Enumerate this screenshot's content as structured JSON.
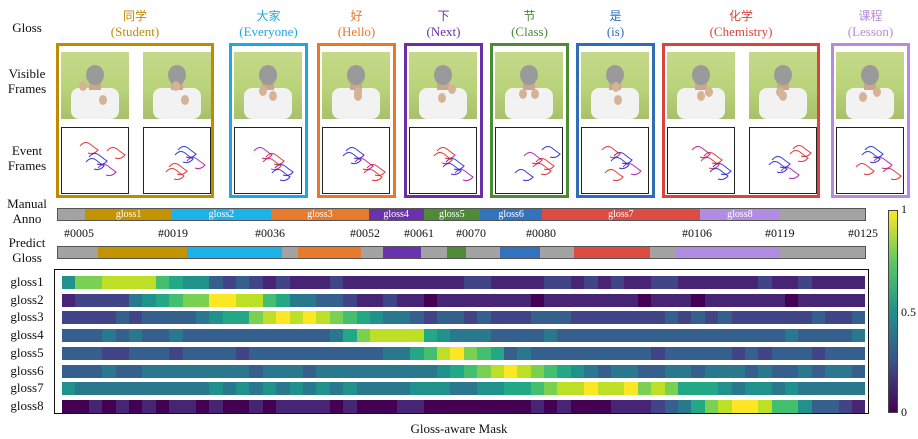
{
  "row_labels": {
    "gloss": "Gloss",
    "visible": "Visible\nFrames",
    "event": "Event\nFrames",
    "manual": "Manual\nAnno",
    "predict": "Predict\nGloss"
  },
  "glosses": [
    {
      "zh": "同学",
      "en": "(Student)",
      "color": "#bf8b00",
      "frames": 2
    },
    {
      "zh": "大家",
      "en": "(Everyone)",
      "color": "#1fa8e0",
      "frames": 1
    },
    {
      "zh": "好",
      "en": "(Hello)",
      "color": "#e8772a",
      "frames": 1
    },
    {
      "zh": "下",
      "en": "(Next)",
      "color": "#6a2fa8",
      "frames": 1
    },
    {
      "zh": "节",
      "en": "(Class)",
      "color": "#4d8a35",
      "frames": 1
    },
    {
      "zh": "是",
      "en": "(is)",
      "color": "#2f6db5",
      "frames": 1
    },
    {
      "zh": "化学",
      "en": "(Chemistry)",
      "color": "#d9443d",
      "frames": 2
    },
    {
      "zh": "课程",
      "en": "(Lesson)",
      "color": "#b58ae0",
      "frames": 1
    }
  ],
  "manual_anno": [
    {
      "label": "",
      "color": "#a3a3a3",
      "span": [
        0.0,
        0.034
      ]
    },
    {
      "label": "gloss1",
      "color": "#c49300",
      "span": [
        0.034,
        0.141
      ]
    },
    {
      "label": "gloss2",
      "color": "#1cb3ea",
      "span": [
        0.141,
        0.264
      ]
    },
    {
      "label": "gloss3",
      "color": "#e87a2d",
      "span": [
        0.264,
        0.385
      ]
    },
    {
      "label": "gloss4",
      "color": "#6a33ad",
      "span": [
        0.385,
        0.453
      ]
    },
    {
      "label": "gloss5",
      "color": "#4f8a36",
      "span": [
        0.453,
        0.523
      ]
    },
    {
      "label": "gloss6",
      "color": "#3273bf",
      "span": [
        0.523,
        0.6
      ]
    },
    {
      "label": "gloss7",
      "color": "#de4b42",
      "span": [
        0.6,
        0.795
      ]
    },
    {
      "label": "gloss8",
      "color": "#b08ce2",
      "span": [
        0.795,
        0.895
      ]
    },
    {
      "label": "",
      "color": "#a3a3a3",
      "span": [
        0.895,
        1.0
      ]
    }
  ],
  "markers": [
    "#0005",
    "#0019",
    "#0036",
    "#0052",
    "#0061",
    "#0070",
    "#0080",
    "#0106",
    "#0119",
    "#0125"
  ],
  "predict_gloss": [
    {
      "color": "#a3a3a3",
      "span": [
        0.0,
        0.05
      ]
    },
    {
      "color": "#c49300",
      "span": [
        0.05,
        0.16
      ]
    },
    {
      "color": "#1cb3ea",
      "span": [
        0.16,
        0.278
      ]
    },
    {
      "color": "#a3a3a3",
      "span": [
        0.278,
        0.298
      ]
    },
    {
      "color": "#e87a2d",
      "span": [
        0.298,
        0.375
      ]
    },
    {
      "color": "#a3a3a3",
      "span": [
        0.375,
        0.403
      ]
    },
    {
      "color": "#6a33ad",
      "span": [
        0.403,
        0.45
      ]
    },
    {
      "color": "#a3a3a3",
      "span": [
        0.45,
        0.482
      ]
    },
    {
      "color": "#4f8a36",
      "span": [
        0.482,
        0.505
      ]
    },
    {
      "color": "#a3a3a3",
      "span": [
        0.505,
        0.548
      ]
    },
    {
      "color": "#3273bf",
      "span": [
        0.548,
        0.597
      ]
    },
    {
      "color": "#a3a3a3",
      "span": [
        0.597,
        0.64
      ]
    },
    {
      "color": "#de4b42",
      "span": [
        0.64,
        0.733
      ]
    },
    {
      "color": "#a3a3a3",
      "span": [
        0.733,
        0.765
      ]
    },
    {
      "color": "#b08ce2",
      "span": [
        0.765,
        0.895
      ]
    },
    {
      "color": "#a3a3a3",
      "span": [
        0.895,
        1.0
      ]
    }
  ],
  "heatmap_labels": [
    "gloss1",
    "gloss2",
    "gloss3",
    "gloss4",
    "gloss5",
    "gloss6",
    "gloss7",
    "gloss8"
  ],
  "caption": "Gloss-aware Mask",
  "colorbar": {
    "max": "1",
    "mid": "0.5",
    "min": "0"
  }
}
